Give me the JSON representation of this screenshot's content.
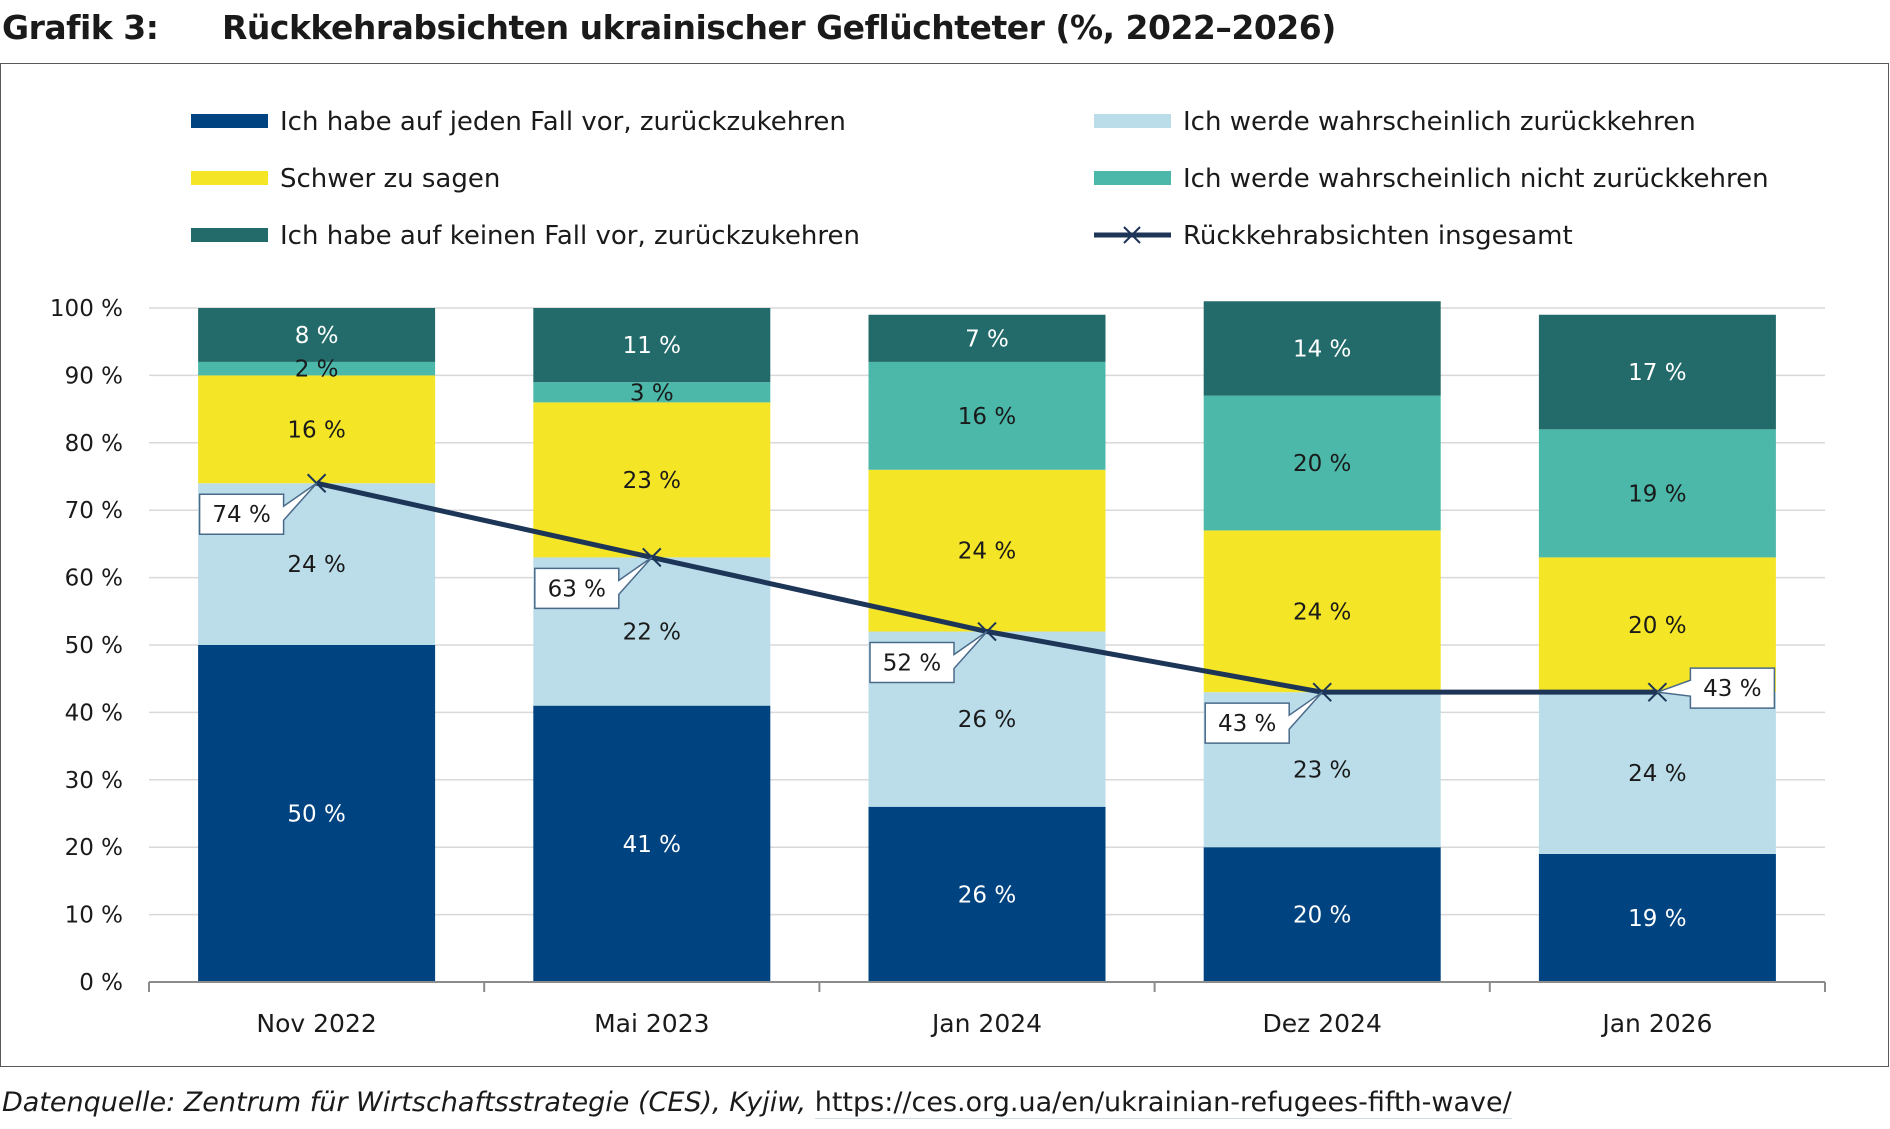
{
  "figure": {
    "label": "Grafik 3:",
    "title": "Rückkehrabsichten ukrainischer Geflüchteter (%, 2022–2026)"
  },
  "source": {
    "prefix": "Datenquelle: Zentrum für Wirtschaftsstrategie (CES), Kyjiw,",
    "url": "https://ces.org.ua/en/ukrainian-refugees-fifth-wave/"
  },
  "chart_data": {
    "type": "bar",
    "stacked": true,
    "categories": [
      "Nov 2022",
      "Mai 2023",
      "Jan 2024",
      "Dez 2024",
      "Jan 2026"
    ],
    "ylim": [
      0,
      100
    ],
    "yticks": [
      0,
      10,
      20,
      30,
      40,
      50,
      60,
      70,
      80,
      90,
      100
    ],
    "ytick_labels": [
      "0 %",
      "10 %",
      "20 %",
      "30 %",
      "40 %",
      "50 %",
      "60 %",
      "70 %",
      "80 %",
      "90 %",
      "100 %"
    ],
    "grid": true,
    "legend_position": "top",
    "series": [
      {
        "name": "Ich habe auf jeden Fall vor, zurückzukehren",
        "color": "#004381",
        "label_color": "#ffffff",
        "values": [
          50,
          41,
          26,
          20,
          19
        ],
        "labels": [
          "50 %",
          "41 %",
          "26 %",
          "20 %",
          "19 %"
        ]
      },
      {
        "name": "Ich werde wahrscheinlich zurückkehren",
        "color": "#bbdde9",
        "label_color": "#1a1a1a",
        "values": [
          24,
          22,
          26,
          23,
          24
        ],
        "labels": [
          "24 %",
          "22 %",
          "26 %",
          "23 %",
          "24 %"
        ]
      },
      {
        "name": "Schwer zu sagen",
        "color": "#f4e526",
        "label_color": "#1a1a1a",
        "values": [
          16,
          23,
          24,
          24,
          20
        ],
        "labels": [
          "16 %",
          "23 %",
          "24 %",
          "24 %",
          "20 %"
        ]
      },
      {
        "name": "Ich werde wahrscheinlich nicht zurückkehren",
        "color": "#4bb8a9",
        "label_color": "#1a1a1a",
        "values": [
          2,
          3,
          16,
          20,
          19
        ],
        "labels": [
          "2 %",
          "3 %",
          "16 %",
          "20 %",
          "19 %"
        ]
      },
      {
        "name": "Ich habe auf keinen Fall vor, zurückzukehren",
        "color": "#236b6a",
        "label_color": "#ffffff",
        "values": [
          8,
          11,
          7,
          14,
          17
        ],
        "labels": [
          "8 %",
          "11 %",
          "7 %",
          "14 %",
          "17 %"
        ]
      }
    ],
    "line_series": {
      "name": "Rückkehrabsichten insgesamt",
      "color": "#1d3557",
      "marker": "x",
      "values": [
        74,
        63,
        52,
        43,
        43
      ],
      "labels": [
        "74 %",
        "63 %",
        "52 %",
        "43 %",
        "43 %"
      ]
    },
    "legend_order": [
      "Ich habe auf jeden Fall vor, zurückzukehren",
      "Ich werde wahrscheinlich zurückkehren",
      "Schwer zu sagen",
      "Ich werde wahrscheinlich nicht zurückkehren",
      "Ich habe auf keinen Fall vor, zurückzukehren",
      "Rückkehrabsichten insgesamt"
    ]
  }
}
